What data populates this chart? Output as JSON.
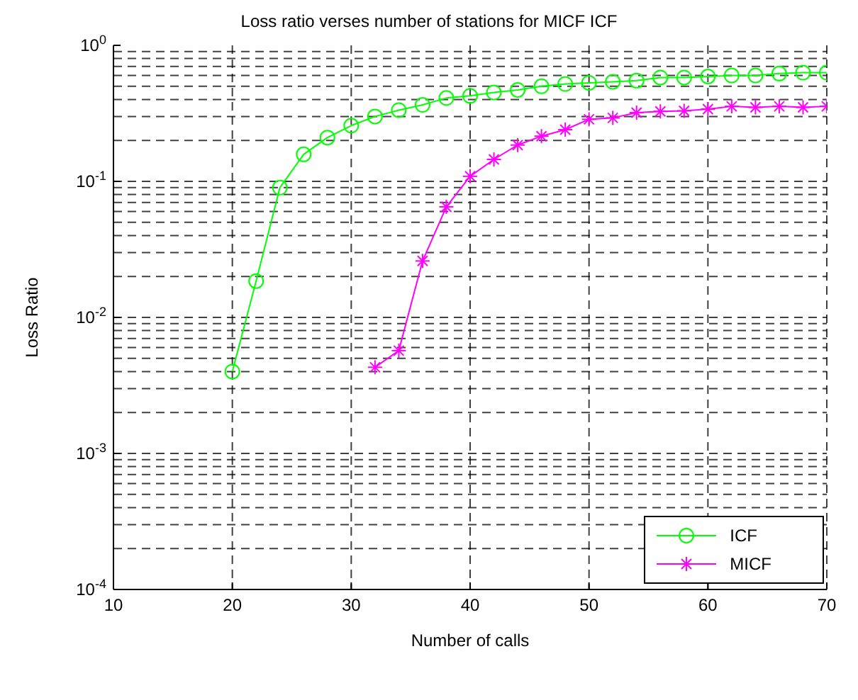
{
  "chart_data": {
    "type": "line",
    "title": "Loss ratio verses number  of stations for MICF ICF",
    "xlabel": "Number of calls",
    "ylabel": "Loss Ratio",
    "log": "y",
    "grid": true,
    "legend": "bottom right",
    "line_style": "solid",
    "xlim": [
      10,
      70
    ],
    "xticks": [
      10,
      20,
      30,
      40,
      50,
      60,
      70
    ],
    "ylim": [
      0.0001,
      1
    ],
    "yticks": [
      {
        "value": 0.0001,
        "label": "10$^{-4}$"
      },
      {
        "value": 0.001,
        "label": "10$^{-3}$"
      },
      {
        "value": 0.01,
        "label": "10$^{-2}$"
      },
      {
        "value": 0.1,
        "label": "10$^{-1}$"
      },
      {
        "value": 1,
        "label": "10$^{0}$"
      }
    ],
    "series": [
      {
        "name": "ICF",
        "color": "#00ff00",
        "marker": "circle",
        "x": [
          20,
          22,
          24,
          26,
          28,
          30,
          32,
          34,
          36,
          38,
          40,
          42,
          44,
          46,
          48,
          50,
          52,
          54,
          56,
          58,
          60,
          62,
          64,
          66,
          68,
          70
        ],
        "values": [
          0.004,
          0.0185,
          0.09,
          0.158,
          0.21,
          0.257,
          0.3,
          0.334,
          0.365,
          0.41,
          0.425,
          0.45,
          0.47,
          0.5,
          0.52,
          0.53,
          0.54,
          0.55,
          0.58,
          0.58,
          0.59,
          0.6,
          0.6,
          0.62,
          0.63,
          0.63
        ]
      },
      {
        "name": "MICF",
        "color": "#ff00ff",
        "marker": "cross",
        "x": [
          32,
          34,
          36,
          38,
          40,
          42,
          44,
          46,
          48,
          50,
          52,
          54,
          56,
          58,
          60,
          62,
          64,
          66,
          68,
          70
        ],
        "values": [
          0.0043,
          0.0057,
          0.026,
          0.065,
          0.109,
          0.145,
          0.185,
          0.215,
          0.24,
          0.286,
          0.293,
          0.32,
          0.327,
          0.33,
          0.34,
          0.356,
          0.35,
          0.356,
          0.35,
          0.356
        ]
      }
    ]
  }
}
